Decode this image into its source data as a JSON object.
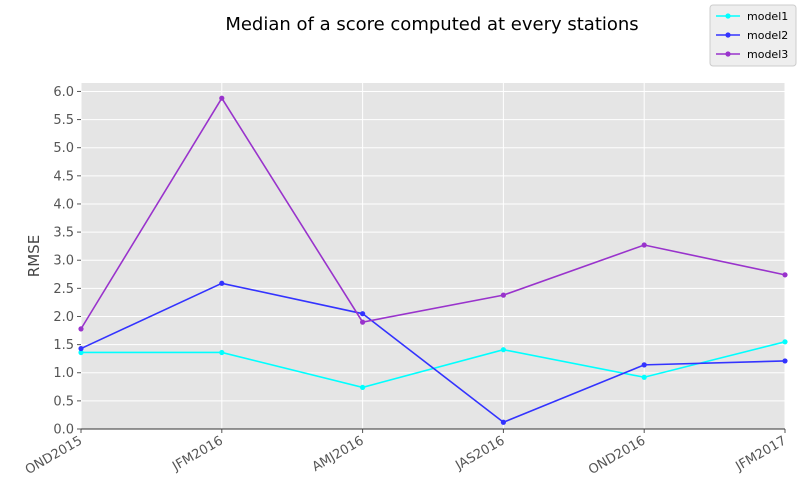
{
  "chart_data": {
    "type": "line",
    "title": "Median of a score computed at every stations",
    "xlabel": "",
    "ylabel": "RMSE",
    "categories": [
      "OND2015",
      "JFM2016",
      "AMJ2016",
      "JAS2016",
      "OND2016",
      "JFM2017"
    ],
    "yticks": [
      "0.0",
      "0.5",
      "1.0",
      "1.5",
      "2.0",
      "2.5",
      "3.0",
      "3.5",
      "4.0",
      "4.5",
      "5.0",
      "5.5",
      "6.0"
    ],
    "ylim": [
      0,
      6.15
    ],
    "grid": true,
    "legend_position": "top-right",
    "series": [
      {
        "name": "model1",
        "color": "#00ffff",
        "values": [
          1.36,
          1.36,
          0.74,
          1.41,
          0.92,
          1.55
        ]
      },
      {
        "name": "model2",
        "color": "#3333ff",
        "values": [
          1.43,
          2.59,
          2.05,
          0.12,
          1.14,
          1.21
        ]
      },
      {
        "name": "model3",
        "color": "#9933cc",
        "values": [
          1.78,
          5.88,
          1.9,
          2.38,
          3.27,
          2.74
        ]
      }
    ]
  }
}
